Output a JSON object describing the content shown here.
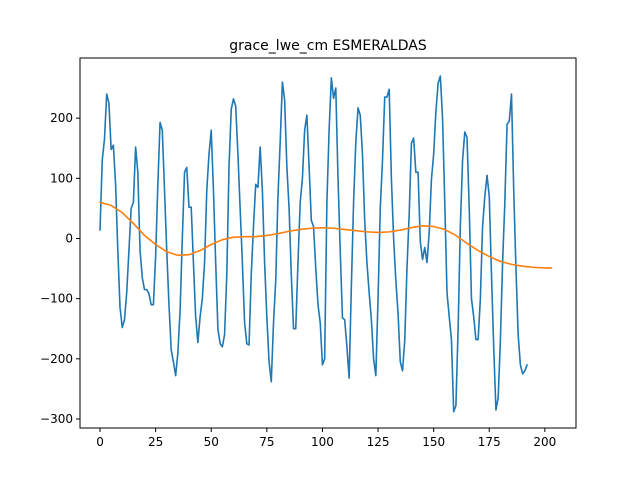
{
  "chart_data": {
    "type": "line",
    "title": "grace_lwe_cm ESMERALDAS",
    "xlabel": "",
    "ylabel": "",
    "xlim": [
      -9,
      214
    ],
    "ylim": [
      -315,
      300
    ],
    "xticks": [
      0,
      25,
      50,
      75,
      100,
      125,
      150,
      175,
      200
    ],
    "yticks": [
      -300,
      -200,
      -100,
      0,
      100,
      200
    ],
    "legend": "none",
    "grid": false,
    "series": [
      {
        "color": "#1f77b4",
        "points": [
          [
            0,
            14
          ],
          [
            1,
            130
          ],
          [
            2,
            165
          ],
          [
            3,
            240
          ],
          [
            4,
            225
          ],
          [
            5,
            148
          ],
          [
            6,
            155
          ],
          [
            7,
            90
          ],
          [
            8,
            -20
          ],
          [
            9,
            -115
          ],
          [
            10,
            -148
          ],
          [
            11,
            -135
          ],
          [
            12,
            -90
          ],
          [
            13,
            -20
          ],
          [
            14,
            50
          ],
          [
            15,
            60
          ],
          [
            16,
            152
          ],
          [
            17,
            110
          ],
          [
            18,
            -20
          ],
          [
            19,
            -65
          ],
          [
            20,
            -85
          ],
          [
            21,
            -85
          ],
          [
            22,
            -92
          ],
          [
            23,
            -110
          ],
          [
            24,
            -110
          ],
          [
            25,
            -30
          ],
          [
            26,
            90
          ],
          [
            27,
            193
          ],
          [
            28,
            180
          ],
          [
            29,
            80
          ],
          [
            30,
            -20
          ],
          [
            31,
            -110
          ],
          [
            32,
            -185
          ],
          [
            33,
            -205
          ],
          [
            34,
            -228
          ],
          [
            35,
            -190
          ],
          [
            36,
            -120
          ],
          [
            37,
            0
          ],
          [
            38,
            110
          ],
          [
            39,
            118
          ],
          [
            40,
            52
          ],
          [
            41,
            52
          ],
          [
            42,
            -40
          ],
          [
            43,
            -130
          ],
          [
            44,
            -173
          ],
          [
            45,
            -130
          ],
          [
            46,
            -100
          ],
          [
            47,
            -40
          ],
          [
            48,
            80
          ],
          [
            49,
            140
          ],
          [
            50,
            180
          ],
          [
            51,
            80
          ],
          [
            52,
            -40
          ],
          [
            53,
            -150
          ],
          [
            54,
            -175
          ],
          [
            55,
            -180
          ],
          [
            56,
            -160
          ],
          [
            57,
            -60
          ],
          [
            58,
            120
          ],
          [
            59,
            215
          ],
          [
            60,
            232
          ],
          [
            61,
            220
          ],
          [
            62,
            140
          ],
          [
            63,
            50
          ],
          [
            64,
            -40
          ],
          [
            65,
            -140
          ],
          [
            66,
            -175
          ],
          [
            67,
            -177
          ],
          [
            68,
            -60
          ],
          [
            69,
            20
          ],
          [
            70,
            90
          ],
          [
            71,
            85
          ],
          [
            72,
            152
          ],
          [
            73,
            80
          ],
          [
            74,
            -40
          ],
          [
            75,
            -130
          ],
          [
            76,
            -205
          ],
          [
            77,
            -238
          ],
          [
            78,
            -140
          ],
          [
            79,
            -70
          ],
          [
            80,
            70
          ],
          [
            81,
            160
          ],
          [
            82,
            260
          ],
          [
            83,
            230
          ],
          [
            84,
            120
          ],
          [
            85,
            50
          ],
          [
            86,
            -60
          ],
          [
            87,
            -150
          ],
          [
            88,
            -150
          ],
          [
            89,
            -40
          ],
          [
            90,
            60
          ],
          [
            91,
            100
          ],
          [
            92,
            180
          ],
          [
            93,
            205
          ],
          [
            94,
            120
          ],
          [
            95,
            30
          ],
          [
            96,
            20
          ],
          [
            97,
            -50
          ],
          [
            98,
            -110
          ],
          [
            99,
            -140
          ],
          [
            100,
            -210
          ],
          [
            101,
            -200
          ],
          [
            102,
            60
          ],
          [
            103,
            180
          ],
          [
            104,
            267
          ],
          [
            105,
            233
          ],
          [
            106,
            250
          ],
          [
            107,
            100
          ],
          [
            108,
            -20
          ],
          [
            109,
            -132
          ],
          [
            110,
            -135
          ],
          [
            111,
            -180
          ],
          [
            112,
            -232
          ],
          [
            113,
            -80
          ],
          [
            114,
            60
          ],
          [
            115,
            160
          ],
          [
            116,
            217
          ],
          [
            117,
            205
          ],
          [
            118,
            140
          ],
          [
            119,
            30
          ],
          [
            120,
            -40
          ],
          [
            121,
            -90
          ],
          [
            122,
            -135
          ],
          [
            123,
            -200
          ],
          [
            124,
            -228
          ],
          [
            125,
            -100
          ],
          [
            126,
            50
          ],
          [
            127,
            130
          ],
          [
            128,
            235
          ],
          [
            129,
            235
          ],
          [
            130,
            248
          ],
          [
            131,
            100
          ],
          [
            132,
            0
          ],
          [
            133,
            -70
          ],
          [
            134,
            -125
          ],
          [
            135,
            -205
          ],
          [
            136,
            -220
          ],
          [
            137,
            -170
          ],
          [
            138,
            -50
          ],
          [
            139,
            40
          ],
          [
            140,
            158
          ],
          [
            141,
            167
          ],
          [
            142,
            110
          ],
          [
            143,
            110
          ],
          [
            144,
            -5
          ],
          [
            145,
            -35
          ],
          [
            146,
            -15
          ],
          [
            147,
            -40
          ],
          [
            148,
            10
          ],
          [
            149,
            98
          ],
          [
            150,
            140
          ],
          [
            151,
            210
          ],
          [
            152,
            258
          ],
          [
            153,
            270
          ],
          [
            154,
            200
          ],
          [
            155,
            60
          ],
          [
            156,
            -90
          ],
          [
            157,
            -130
          ],
          [
            158,
            -168
          ],
          [
            159,
            -288
          ],
          [
            160,
            -278
          ],
          [
            161,
            -150
          ],
          [
            162,
            20
          ],
          [
            163,
            130
          ],
          [
            164,
            177
          ],
          [
            165,
            168
          ],
          [
            166,
            50
          ],
          [
            167,
            -100
          ],
          [
            168,
            -130
          ],
          [
            169,
            -168
          ],
          [
            170,
            -168
          ],
          [
            171,
            -100
          ],
          [
            172,
            20
          ],
          [
            173,
            70
          ],
          [
            174,
            105
          ],
          [
            175,
            70
          ],
          [
            176,
            -60
          ],
          [
            177,
            -180
          ],
          [
            178,
            -285
          ],
          [
            179,
            -265
          ],
          [
            180,
            -170
          ],
          [
            181,
            -40
          ],
          [
            182,
            60
          ],
          [
            183,
            190
          ],
          [
            184,
            195
          ],
          [
            185,
            240
          ],
          [
            186,
            80
          ],
          [
            187,
            -50
          ],
          [
            188,
            -160
          ],
          [
            189,
            -210
          ],
          [
            190,
            -225
          ],
          [
            191,
            -220
          ],
          [
            192,
            -210
          ]
        ]
      },
      {
        "color": "#ff7f0e",
        "points": [
          [
            0,
            60
          ],
          [
            5,
            55
          ],
          [
            10,
            43
          ],
          [
            15,
            25
          ],
          [
            20,
            5
          ],
          [
            25,
            -10
          ],
          [
            30,
            -22
          ],
          [
            35,
            -28
          ],
          [
            40,
            -27
          ],
          [
            45,
            -20
          ],
          [
            50,
            -10
          ],
          [
            55,
            -2
          ],
          [
            60,
            2
          ],
          [
            65,
            3
          ],
          [
            70,
            3
          ],
          [
            75,
            5
          ],
          [
            80,
            8
          ],
          [
            85,
            12
          ],
          [
            90,
            15
          ],
          [
            95,
            17
          ],
          [
            100,
            18
          ],
          [
            105,
            17
          ],
          [
            110,
            15
          ],
          [
            115,
            13
          ],
          [
            120,
            11
          ],
          [
            125,
            10
          ],
          [
            130,
            11
          ],
          [
            135,
            14
          ],
          [
            140,
            18
          ],
          [
            145,
            21
          ],
          [
            150,
            20
          ],
          [
            155,
            15
          ],
          [
            160,
            5
          ],
          [
            165,
            -8
          ],
          [
            170,
            -20
          ],
          [
            175,
            -30
          ],
          [
            180,
            -38
          ],
          [
            185,
            -43
          ],
          [
            190,
            -46
          ],
          [
            195,
            -48
          ],
          [
            200,
            -49
          ],
          [
            203,
            -49
          ]
        ]
      }
    ]
  }
}
